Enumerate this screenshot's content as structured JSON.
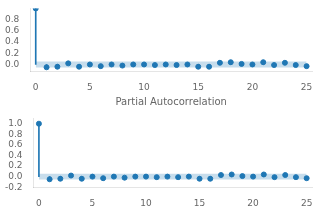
{
  "chart_data": [
    {
      "type": "stem",
      "xlabel": "Partial Autocorrelation",
      "x": [
        0,
        1,
        2,
        3,
        4,
        5,
        6,
        7,
        8,
        9,
        10,
        11,
        12,
        13,
        14,
        15,
        16,
        17,
        18,
        19,
        20,
        21,
        22,
        23,
        24,
        25
      ],
      "values": [
        1.0,
        -0.05,
        -0.04,
        0.02,
        -0.04,
        0.0,
        -0.03,
        0.0,
        -0.02,
        0.0,
        0.0,
        -0.01,
        0.0,
        -0.01,
        0.0,
        -0.04,
        -0.04,
        0.03,
        0.04,
        0.01,
        0.0,
        0.04,
        -0.01,
        0.03,
        -0.01,
        -0.03
      ],
      "conf_band": 0.055,
      "color": "#1f77b4",
      "xlim": [
        -0.5,
        25.5
      ],
      "ylim": [
        -0.12,
        1.0
      ],
      "xticks": [
        0,
        5,
        10,
        15,
        20,
        25
      ],
      "yticks": [
        {
          "value": 0,
          "label": "0.0"
        },
        0.2,
        0.4,
        0.6,
        0.8
      ],
      "grid": false
    },
    {
      "type": "stem",
      "x": [
        0,
        1,
        2,
        3,
        4,
        5,
        6,
        7,
        8,
        9,
        10,
        11,
        12,
        13,
        14,
        15,
        16,
        17,
        18,
        19,
        20,
        21,
        22,
        23,
        24,
        25
      ],
      "values": [
        1.0,
        -0.05,
        -0.04,
        0.02,
        -0.04,
        0.0,
        -0.03,
        0.0,
        -0.02,
        0.0,
        0.0,
        -0.01,
        0.0,
        -0.01,
        0.0,
        -0.04,
        -0.04,
        0.03,
        0.04,
        0.01,
        0.0,
        0.04,
        -0.01,
        0.03,
        -0.01,
        -0.03
      ],
      "conf_band": 0.055,
      "color": "#1f77b4",
      "xlim": [
        -0.5,
        25.5
      ],
      "ylim": [
        -0.2,
        1.1
      ],
      "xticks": [
        0,
        5,
        10,
        15,
        20,
        25
      ],
      "yticks": [
        -0.2,
        {
          "value": 0,
          "label": "0.0"
        },
        0.2,
        0.4,
        0.6,
        0.8,
        {
          "value": 1,
          "label": "1.0"
        }
      ],
      "grid": false
    }
  ]
}
